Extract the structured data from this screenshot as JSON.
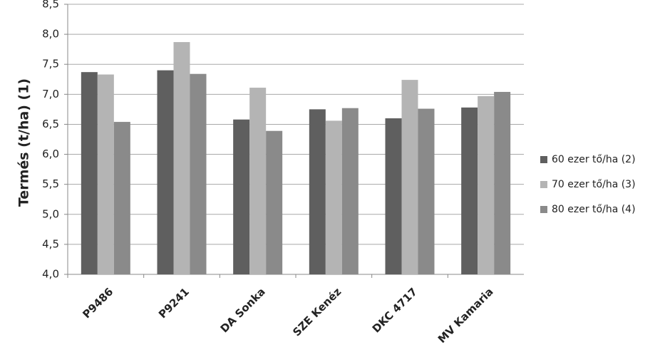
{
  "chart_data": {
    "type": "bar",
    "y_label": "Termés (t/ha) (1)",
    "categories": [
      "P9486",
      "P9241",
      "DA Sonka",
      "SZE Kenéz",
      "DKC 4717",
      "MV Kamaria"
    ],
    "series": [
      {
        "name": "60 ezer tő/ha (2)",
        "color": "#5f5f5f",
        "values": [
          7.37,
          7.4,
          6.58,
          6.75,
          6.6,
          6.78
        ]
      },
      {
        "name": "70 ezer tő/ha (3)",
        "color": "#b4b4b4",
        "values": [
          7.33,
          7.87,
          7.11,
          6.56,
          7.24,
          6.97
        ]
      },
      {
        "name": "80 ezer tő/ha (4)",
        "color": "#8a8a8a",
        "values": [
          6.54,
          7.34,
          6.39,
          6.77,
          6.76,
          7.04
        ]
      }
    ],
    "ylim": [
      4.0,
      8.5
    ],
    "yticks": [
      {
        "value": 4.0,
        "label": "4,0"
      },
      {
        "value": 4.5,
        "label": "4,5"
      },
      {
        "value": 5.0,
        "label": "5,0"
      },
      {
        "value": 5.5,
        "label": "5,5"
      },
      {
        "value": 6.0,
        "label": "6,0"
      },
      {
        "value": 6.5,
        "label": "6,5"
      },
      {
        "value": 7.0,
        "label": "7,0"
      },
      {
        "value": 7.5,
        "label": "7,5"
      },
      {
        "value": 8.0,
        "label": "8,0"
      },
      {
        "value": 8.5,
        "label": "8,5"
      }
    ],
    "grid": true,
    "legend": "right"
  }
}
